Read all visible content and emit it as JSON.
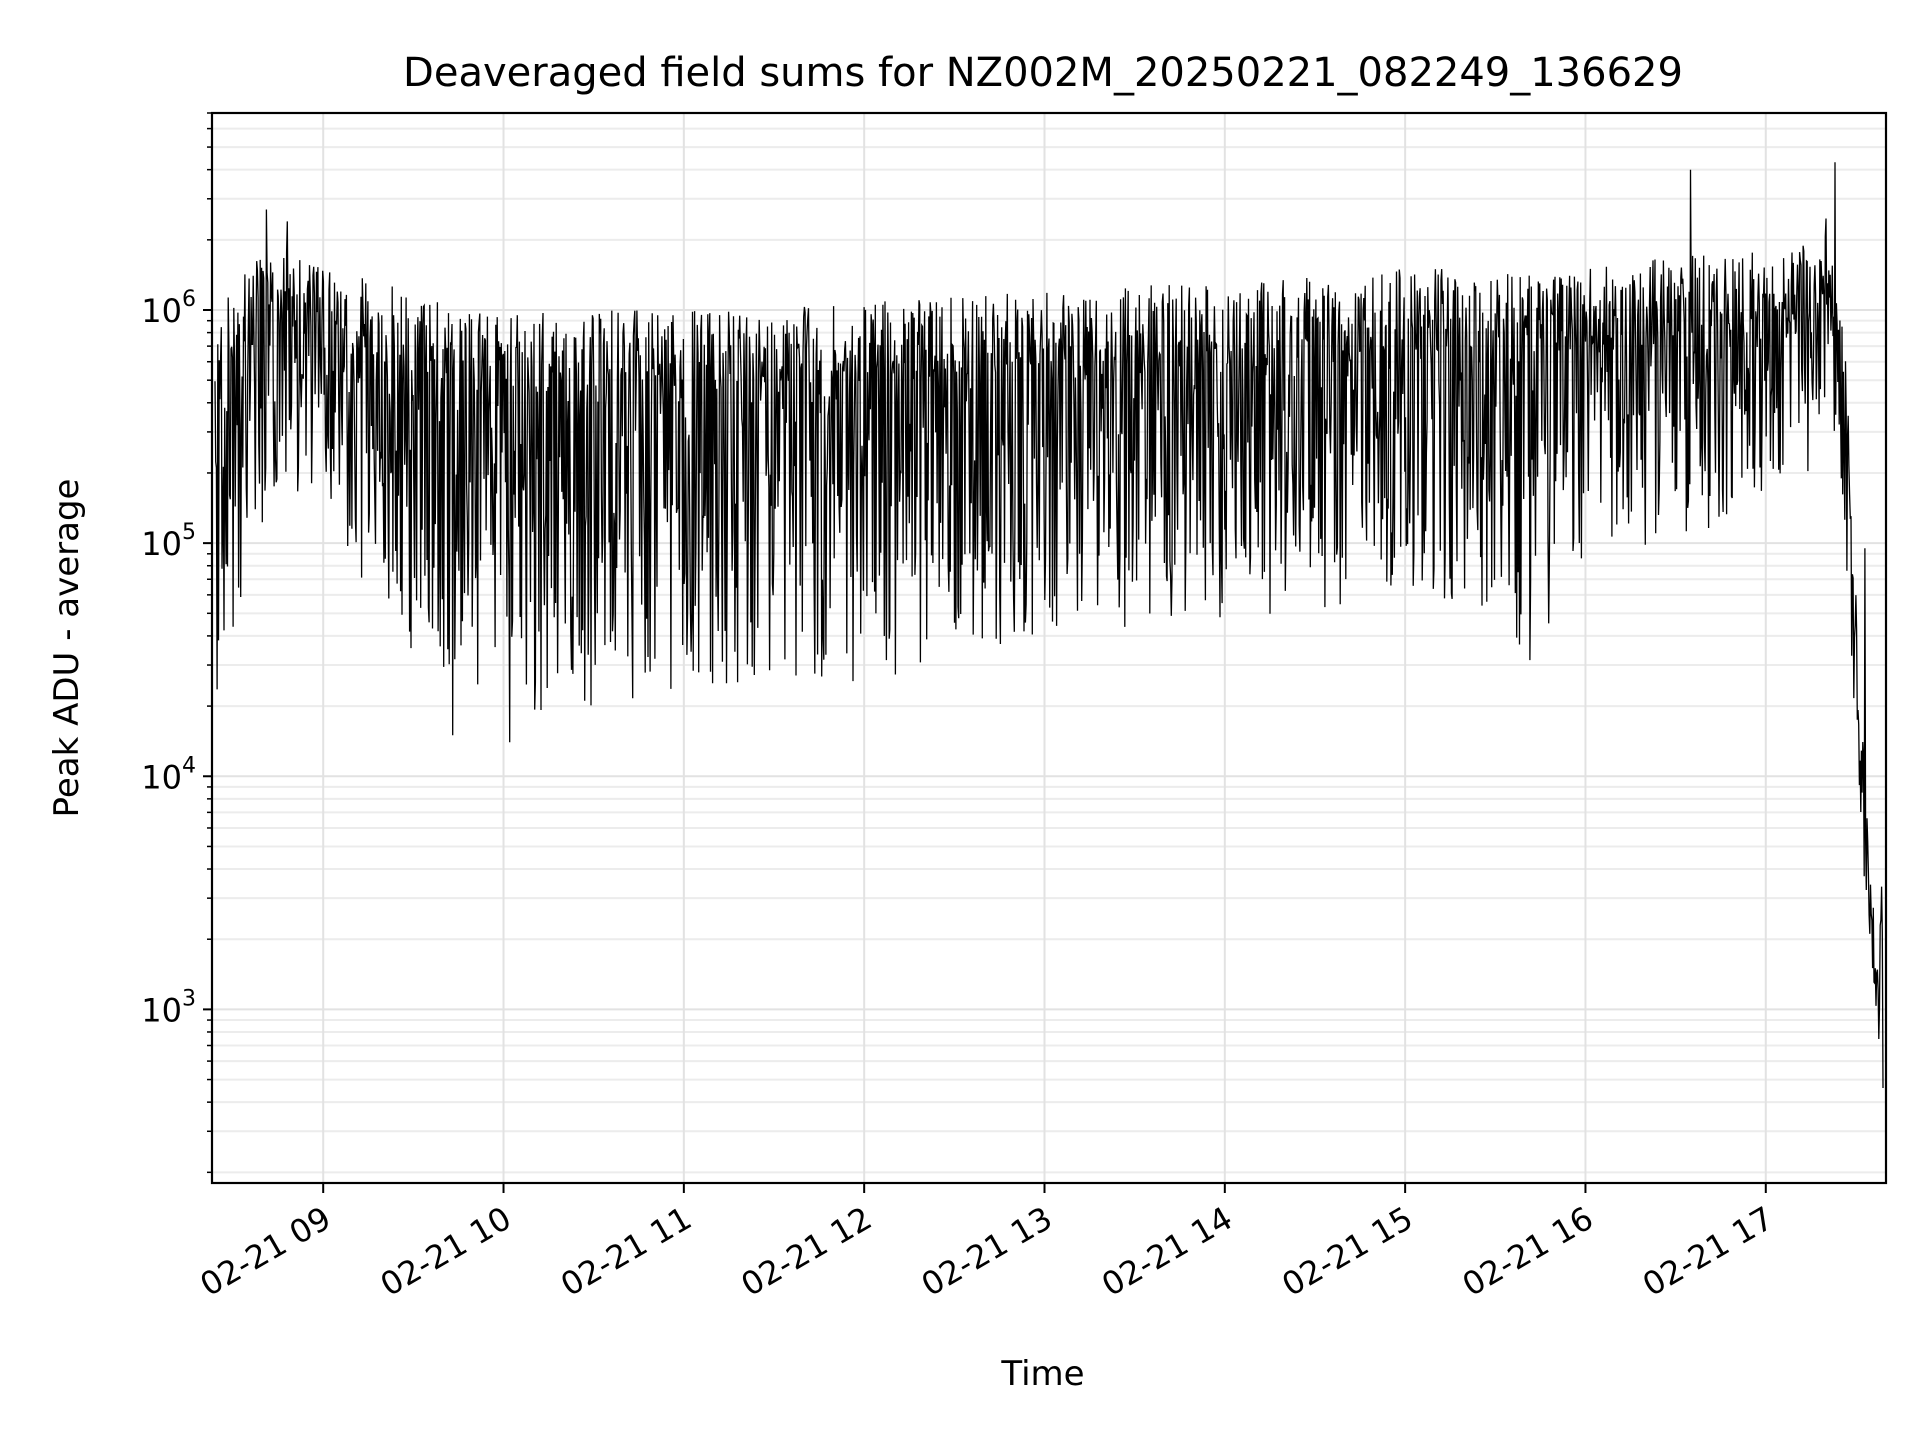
{
  "chart_data": {
    "type": "line",
    "title": "Deaveraged field sums for NZ002M_20250221_082249_136629",
    "xlabel": "Time",
    "ylabel": "Peak ADU - average",
    "yscale": "log",
    "ylim": [
      180,
      7000000
    ],
    "xlim": [
      "2025-02-21 08:23",
      "2025-02-21 17:40"
    ],
    "grid": true,
    "line_color": "#000000",
    "x_ticks": [
      {
        "time": "2025-02-21 09:00",
        "label": "02-21 09"
      },
      {
        "time": "2025-02-21 10:00",
        "label": "02-21 10"
      },
      {
        "time": "2025-02-21 11:00",
        "label": "02-21 11"
      },
      {
        "time": "2025-02-21 12:00",
        "label": "02-21 12"
      },
      {
        "time": "2025-02-21 13:00",
        "label": "02-21 13"
      },
      {
        "time": "2025-02-21 14:00",
        "label": "02-21 14"
      },
      {
        "time": "2025-02-21 15:00",
        "label": "02-21 15"
      },
      {
        "time": "2025-02-21 16:00",
        "label": "02-21 16"
      },
      {
        "time": "2025-02-21 17:00",
        "label": "02-21 17"
      }
    ],
    "y_ticks": [
      {
        "value": 1000,
        "base": "10",
        "exp": "3"
      },
      {
        "value": 10000,
        "base": "10",
        "exp": "4"
      },
      {
        "value": 100000,
        "base": "10",
        "exp": "5"
      },
      {
        "value": 1000000,
        "base": "10",
        "exp": "6"
      }
    ],
    "envelope": [
      {
        "time": "2025-02-21 08:24",
        "peak": 1000000,
        "trough": 20000
      },
      {
        "time": "2025-02-21 08:30",
        "peak": 1300000,
        "trough": 40000
      },
      {
        "time": "2025-02-21 08:45",
        "peak": 2000000,
        "trough": 180000
      },
      {
        "time": "2025-02-21 09:00",
        "peak": 1500000,
        "trough": 150000
      },
      {
        "time": "2025-02-21 09:15",
        "peak": 1400000,
        "trough": 60000
      },
      {
        "time": "2025-02-21 09:30",
        "peak": 1200000,
        "trough": 30000
      },
      {
        "time": "2025-02-21 09:45",
        "peak": 1000000,
        "trough": 20000
      },
      {
        "time": "2025-02-21 10:00",
        "peak": 950000,
        "trough": 18000
      },
      {
        "time": "2025-02-21 10:30",
        "peak": 1000000,
        "trough": 20000
      },
      {
        "time": "2025-02-21 11:00",
        "peak": 1000000,
        "trough": 22000
      },
      {
        "time": "2025-02-21 11:30",
        "peak": 1050000,
        "trough": 25000
      },
      {
        "time": "2025-02-21 12:00",
        "peak": 1100000,
        "trough": 25000
      },
      {
        "time": "2025-02-21 12:30",
        "peak": 1150000,
        "trough": 30000
      },
      {
        "time": "2025-02-21 13:00",
        "peak": 1250000,
        "trough": 40000
      },
      {
        "time": "2025-02-21 13:30",
        "peak": 1300000,
        "trough": 40000
      },
      {
        "time": "2025-02-21 14:00",
        "peak": 1300000,
        "trough": 45000
      },
      {
        "time": "2025-02-21 14:30",
        "peak": 1400000,
        "trough": 50000
      },
      {
        "time": "2025-02-21 15:00",
        "peak": 1500000,
        "trough": 60000
      },
      {
        "time": "2025-02-21 15:30",
        "peak": 1500000,
        "trough": 50000
      },
      {
        "time": "2025-02-21 15:40",
        "peak": 1400000,
        "trough": 27000
      },
      {
        "time": "2025-02-21 16:00",
        "peak": 1500000,
        "trough": 90000
      },
      {
        "time": "2025-02-21 16:30",
        "peak": 1700000,
        "trough": 100000
      },
      {
        "time": "2025-02-21 17:00",
        "peak": 1800000,
        "trough": 150000
      },
      {
        "time": "2025-02-21 17:15",
        "peak": 2000000,
        "trough": 200000
      },
      {
        "time": "2025-02-21 17:20",
        "peak": 2500000,
        "trough": 400000
      },
      {
        "time": "2025-02-21 17:26",
        "peak": 1000000,
        "trough": 150000
      },
      {
        "time": "2025-02-21 17:30",
        "peak": 60000,
        "trough": 9000
      },
      {
        "time": "2025-02-21 17:34",
        "peak": 6000,
        "trough": 2500
      },
      {
        "time": "2025-02-21 17:37",
        "peak": 2000,
        "trough": 800
      },
      {
        "time": "2025-02-21 17:39",
        "peak": 5000,
        "trough": 450
      }
    ],
    "spikes": [
      {
        "time": "2025-02-21 08:41",
        "value": 2700000
      },
      {
        "time": "2025-02-21 08:48",
        "value": 2400000
      },
      {
        "time": "2025-02-21 09:43",
        "value": 15000
      },
      {
        "time": "2025-02-21 10:02",
        "value": 14000
      },
      {
        "time": "2025-02-21 16:35",
        "value": 4000000
      },
      {
        "time": "2025-02-21 17:23",
        "value": 4300000
      },
      {
        "time": "2025-02-21 17:33",
        "value": 95000
      },
      {
        "time": "2025-02-21 17:39",
        "value": 460
      }
    ]
  }
}
